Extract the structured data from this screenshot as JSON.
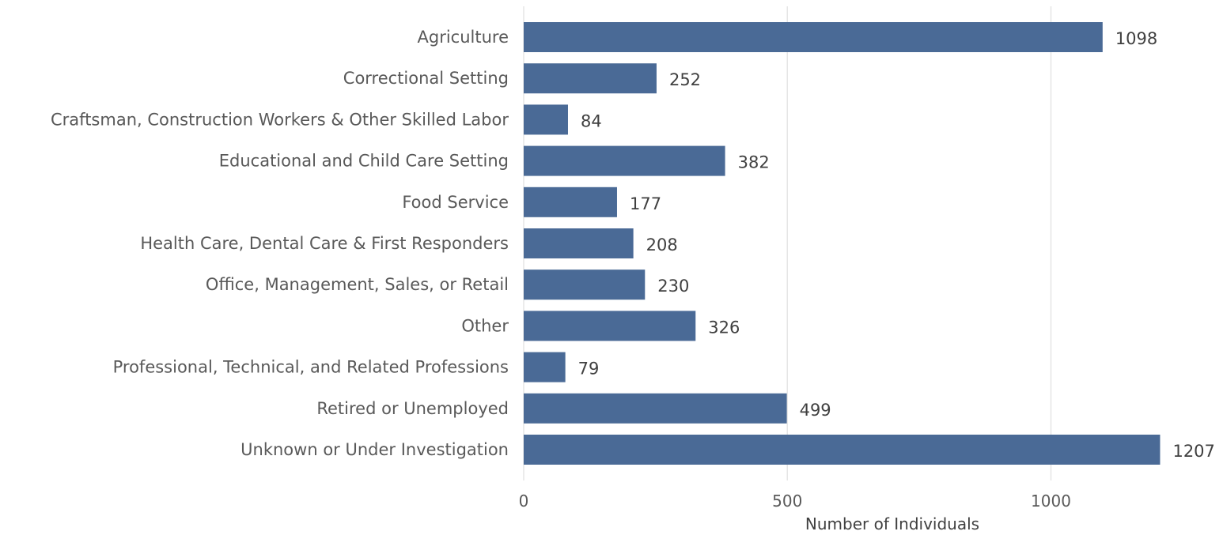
{
  "chart_data": {
    "type": "bar",
    "orientation": "horizontal",
    "categories": [
      "Agriculture",
      "Correctional Setting",
      "Craftsman, Construction Workers & Other Skilled Labor",
      "Educational and Child Care Setting",
      "Food Service",
      "Health Care, Dental Care & First Responders",
      "Office, Management, Sales, or Retail",
      "Other",
      "Professional, Technical, and Related Professions",
      "Retired or Unemployed",
      "Unknown or Under Investigation"
    ],
    "values": [
      1098,
      252,
      84,
      382,
      177,
      208,
      230,
      326,
      79,
      499,
      1207
    ],
    "title": "",
    "xlabel": "Number of Individuals",
    "ylabel": "",
    "xlim": [
      0,
      1250
    ],
    "xticks": [
      0,
      500,
      1000
    ],
    "bar_color": "#4a6a96",
    "grid": true,
    "legend": "none",
    "data_labels": true
  }
}
